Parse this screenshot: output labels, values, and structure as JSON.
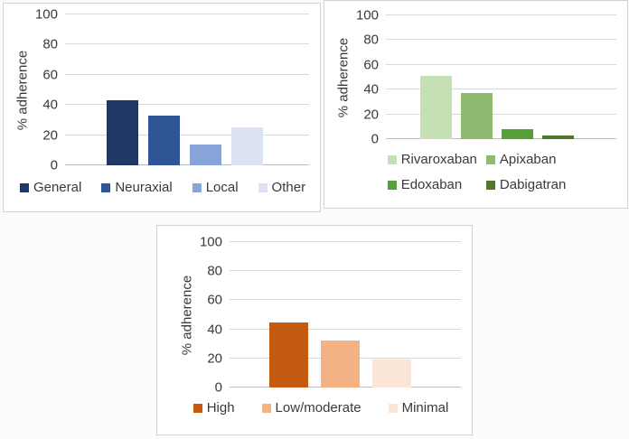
{
  "figure": {
    "background": "#fbfbfb",
    "panel_border": "#d2d2d2",
    "grid_color": "#d9d9d9",
    "baseline_color": "#bdbdbd",
    "text_color": "#3a3a3a"
  },
  "chart_data": [
    {
      "type": "bar",
      "title": "",
      "ylabel": "% adherence",
      "xlabel": "",
      "ylim": [
        0,
        100
      ],
      "yticks": [
        100,
        80,
        60,
        40,
        20,
        0
      ],
      "grid": true,
      "legend_position": "bottom",
      "categories": [
        "General",
        "Neuraxial",
        "Local",
        "Other"
      ],
      "values": [
        43,
        33,
        14,
        25
      ],
      "colors": [
        "#1F3864",
        "#2F5597",
        "#87A4D8",
        "#DBE3F3"
      ]
    },
    {
      "type": "bar",
      "title": "",
      "ylabel": "% adherence",
      "xlabel": "",
      "ylim": [
        0,
        100
      ],
      "yticks": [
        100,
        80,
        60,
        40,
        20,
        0
      ],
      "grid": true,
      "legend_position": "bottom",
      "legend_rows": [
        [
          "Rivaroxaban",
          "Apixaban"
        ],
        [
          "Edoxaban",
          "Dabigatran"
        ]
      ],
      "categories": [
        "Rivaroxaban",
        "Apixaban",
        "Edoxaban",
        "Dabigatran"
      ],
      "values": [
        51,
        37,
        8,
        3
      ],
      "colors": [
        "#C5E0B4",
        "#8EBB6F",
        "#57A038",
        "#50772E"
      ]
    },
    {
      "type": "bar",
      "title": "",
      "ylabel": "% adherence",
      "xlabel": "",
      "ylim": [
        0,
        100
      ],
      "yticks": [
        100,
        80,
        60,
        40,
        20,
        0
      ],
      "grid": true,
      "legend_position": "bottom",
      "categories": [
        "High",
        "Low/moderate",
        "Minimal"
      ],
      "values": [
        45,
        32,
        19
      ],
      "colors": [
        "#C55A11",
        "#F4B183",
        "#FBE5D6"
      ]
    }
  ]
}
